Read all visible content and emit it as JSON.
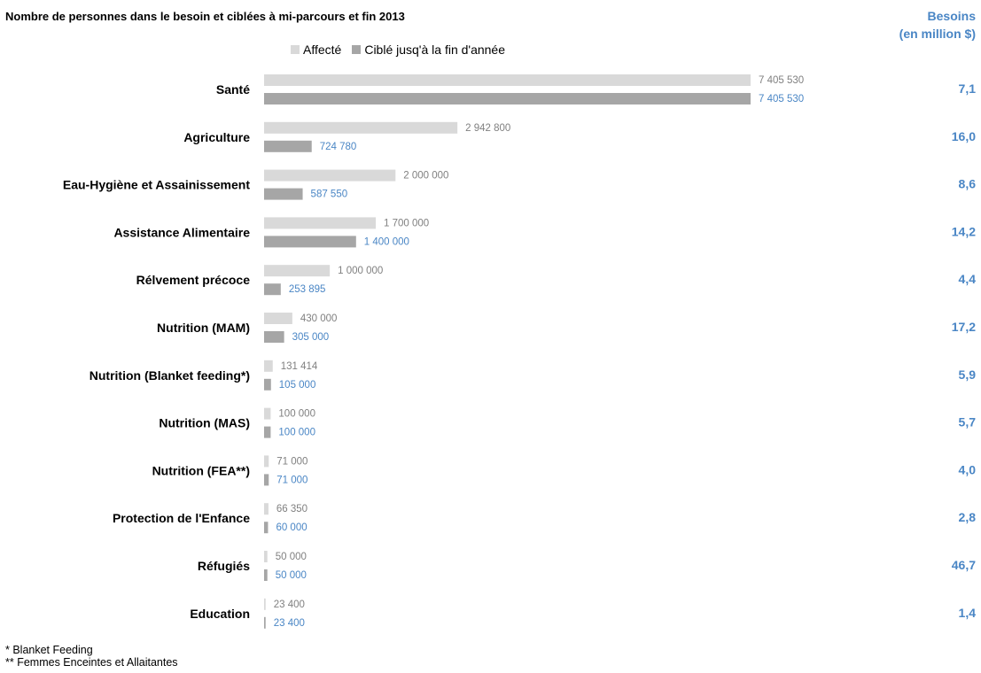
{
  "chart_data": {
    "type": "bar",
    "orientation": "horizontal",
    "title": "Nombre de personnes dans le besoin et ciblées à mi-parcours et fin 2013",
    "needs_header": [
      "Besoins",
      "(en million $)"
    ],
    "categories": [
      "Santé",
      "Agriculture",
      "Eau-Hygiène et Assainissement",
      "Assistance Alimentaire",
      "Rélvement précoce",
      "Nutrition (MAM)",
      "Nutrition (Blanket feeding*)",
      "Nutrition (MAS)",
      "Nutrition (FEA**)",
      "Protection de l'Enfance",
      "Réfugiés",
      "Education"
    ],
    "series": [
      {
        "name": "Affecté",
        "color": "#d9d9d9",
        "label_color": "#808080",
        "values": [
          7405530,
          2942800,
          2000000,
          1700000,
          1000000,
          430000,
          131414,
          100000,
          71000,
          66350,
          50000,
          23400
        ],
        "labels": [
          "7 405 530",
          "2 942 800",
          "2 000 000",
          "1 700 000",
          "1 000 000",
          "430 000",
          "131 414",
          "100 000",
          "71 000",
          "66 350",
          "50 000",
          "23 400"
        ]
      },
      {
        "name": "Ciblé jusq'à la fin d'année",
        "color": "#a6a6a6",
        "label_color": "#4a86c5",
        "values": [
          7405530,
          724780,
          587550,
          1400000,
          253895,
          305000,
          105000,
          100000,
          71000,
          60000,
          50000,
          23400
        ],
        "labels": [
          "7 405 530",
          "724 780",
          "587 550",
          "1 400 000",
          "253 895",
          "305 000",
          "105 000",
          "100 000",
          "71 000",
          "60 000",
          "50 000",
          "23 400"
        ]
      }
    ],
    "needs_values": [
      "7,1",
      "16,0",
      "8,6",
      "14,2",
      "4,4",
      "17,2",
      "5,9",
      "5,7",
      "4,0",
      "2,8",
      "46,7",
      "1,4"
    ],
    "needs_color": "#4a86c5",
    "legend_position": "top",
    "grid": false,
    "footnotes": [
      "*  Blanket Feeding",
      "** Femmes Enceintes et Allaitantes"
    ]
  }
}
